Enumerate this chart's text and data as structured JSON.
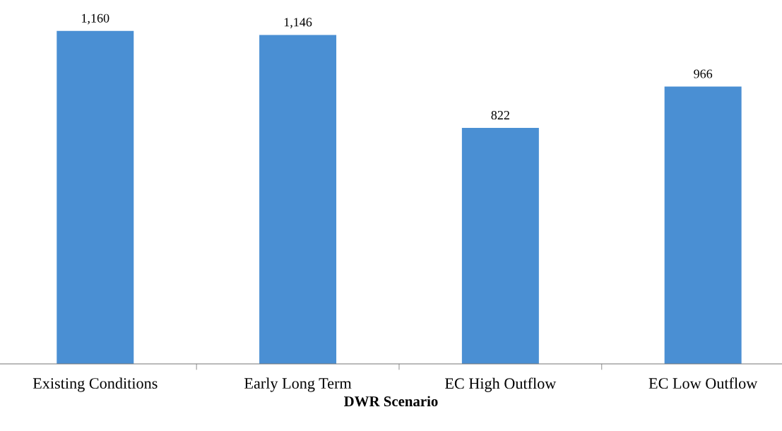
{
  "chart_data": {
    "type": "bar",
    "xlabel": "DWR Scenario",
    "categories": [
      "Existing Conditions",
      "Early Long Term",
      "EC High Outflow",
      "EC Low Outflow"
    ],
    "values": [
      1160,
      1146,
      822,
      966
    ],
    "color": "#4a8fd3",
    "value_labels": [
      "1,160",
      "1,146",
      "822",
      "966"
    ],
    "grid": false,
    "legend": false
  }
}
